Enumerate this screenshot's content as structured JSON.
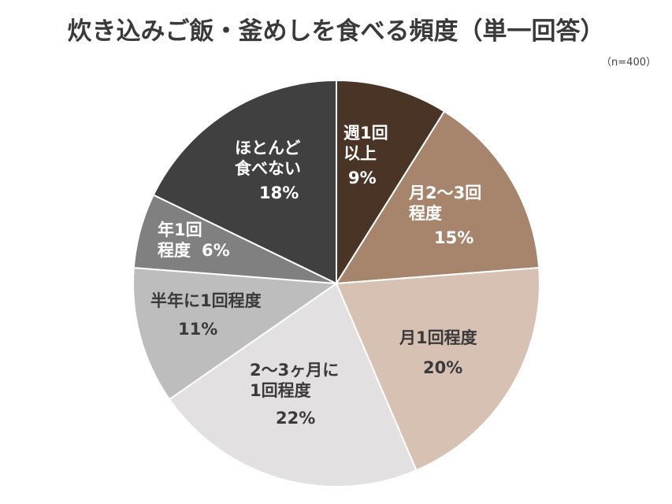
{
  "header": {
    "title": "炊き込みご飯・釜めしを食べる頻度（単一回答）",
    "sample_size": "（n=400）"
  },
  "chart_data": {
    "type": "pie",
    "title": "炊き込みご飯・釜めしを食べる頻度（単一回答）",
    "subtitle": "（n=400）",
    "start_angle": "12 o'clock",
    "direction": "clockwise",
    "legend": "none (labels inside slices)",
    "categories": [
      "週1回以上",
      "月2～3回程度",
      "月1回程度",
      "2～3ヶ月に1回程度",
      "半年に1回程度",
      "年1回程度",
      "ほとんど食べない"
    ],
    "values": [
      9,
      15,
      20,
      22,
      11,
      6,
      18
    ],
    "unit": "%",
    "colors": [
      "#4a3426",
      "#a6856c",
      "#d7c1b2",
      "#e3e0e1",
      "#bdbdbd",
      "#808080",
      "#404040"
    ]
  },
  "slices": [
    {
      "name": "weekly",
      "lines": [
        "週1回",
        "以上"
      ],
      "pct": "9%",
      "color": "#4a3426",
      "text_color": "#ffffff"
    },
    {
      "name": "monthly-2-3",
      "lines": [
        "月2～3回",
        "程度"
      ],
      "pct": "15%",
      "color": "#a6856c",
      "text_color": "#ffffff"
    },
    {
      "name": "monthly-1",
      "lines": [
        "月1回程度"
      ],
      "pct": "20%",
      "color": "#d7c1b2",
      "text_color": "#3a3a3a"
    },
    {
      "name": "every-2-3-months",
      "lines": [
        "2～3ヶ月に",
        "1回程度"
      ],
      "pct": "22%",
      "color": "#e3e0e1",
      "text_color": "#3a3a3a"
    },
    {
      "name": "half-yearly",
      "lines": [
        "半年に1回程度"
      ],
      "pct": "11%",
      "color": "#bdbdbd",
      "text_color": "#3a3a3a"
    },
    {
      "name": "yearly",
      "lines": [
        "年1回",
        "程度"
      ],
      "pct": "6%",
      "color": "#808080",
      "text_color": "#ffffff"
    },
    {
      "name": "rarely",
      "lines": [
        "ほとんど",
        "食べない"
      ],
      "pct": "18%",
      "color": "#404040",
      "text_color": "#ffffff"
    }
  ]
}
